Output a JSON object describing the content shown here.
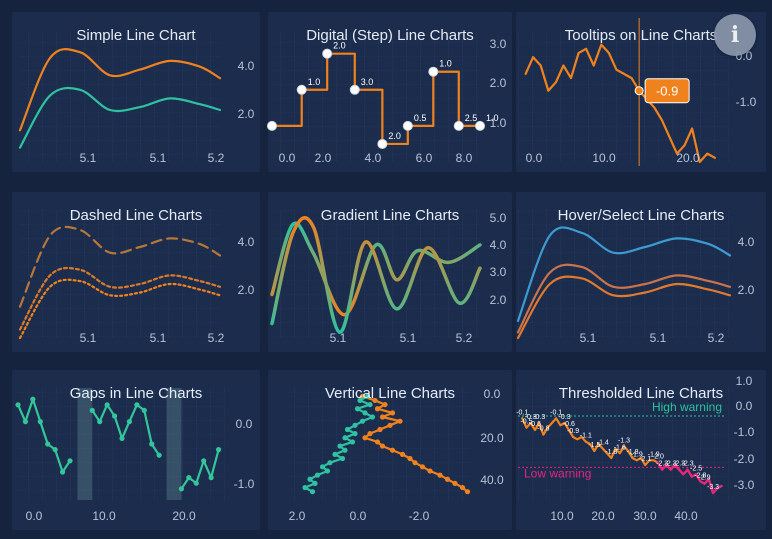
{
  "info_button": {
    "icon": "info-icon",
    "glyph": "i"
  },
  "colors": {
    "background": "#15233f",
    "panel": "#1b2c4d",
    "orange": "#f0821e",
    "teal": "#2fc2a0",
    "blue": "#3d9bd1",
    "green_line": "#33c69a",
    "warning_pink": "#e6237e",
    "high_warning": "#2bc29a"
  },
  "chart_data": [
    {
      "type": "line",
      "title": "Simple Line Chart",
      "x_ticks": [
        "5.1",
        "5.1",
        "5.2"
      ],
      "y_ticks": [
        "4.0",
        "2.0"
      ],
      "xlim": [
        5.0,
        5.2
      ],
      "ylim": [
        1.0,
        5.5
      ],
      "series": [
        {
          "color": "#f0821e",
          "x": [
            5.0,
            5.03,
            5.06,
            5.09,
            5.12,
            5.15,
            5.18,
            5.2
          ],
          "y": [
            2.1,
            4.6,
            4.8,
            4.0,
            4.2,
            4.5,
            4.3,
            3.9
          ]
        },
        {
          "color": "#2fc2a0",
          "x": [
            5.0,
            5.03,
            5.06,
            5.09,
            5.12,
            5.15,
            5.18,
            5.2
          ],
          "y": [
            1.5,
            3.3,
            3.5,
            2.8,
            2.9,
            3.2,
            3.0,
            2.8
          ]
        }
      ]
    },
    {
      "type": "line",
      "title": "Digital (Step) Line Charts",
      "x_ticks": [
        "0.0",
        "2.0",
        "4.0",
        "6.0",
        "8.0"
      ],
      "y_ticks": [
        "3.0",
        "2.0",
        "1.0"
      ],
      "xlim": [
        -0.8,
        9.0
      ],
      "ylim": [
        0.0,
        3.6
      ],
      "series": [
        {
          "color": "#f0821e",
          "step": true,
          "x": [
            -0.8,
            0.6,
            1.8,
            3.1,
            4.4,
            5.6,
            6.8,
            8.0,
            9.0
          ],
          "y": [
            1.0,
            2.0,
            3.0,
            2.0,
            0.5,
            1.0,
            2.5,
            1.0,
            1.0
          ],
          "labels": [
            "",
            "1.0",
            "2.0",
            "3.0",
            "2.0",
            "0.5",
            "1.0",
            "2.5",
            "1.0"
          ]
        }
      ]
    },
    {
      "type": "line",
      "title": "Tooltips on Line Charts",
      "x_ticks": [
        "0.0",
        "10.0",
        "20.0"
      ],
      "y_ticks": [
        "0.0",
        "-1.0"
      ],
      "xlim": [
        -1,
        27
      ],
      "ylim": [
        -2.6,
        0.5
      ],
      "tooltip": {
        "x": 15,
        "value": "-0.9"
      },
      "series": [
        {
          "color": "#f0821e",
          "x": [
            0,
            1,
            2,
            3,
            4,
            5,
            6,
            7,
            8,
            9,
            10,
            11,
            12,
            13,
            14,
            15,
            16,
            17,
            18,
            19,
            20,
            21,
            22,
            23,
            24,
            25
          ],
          "y": [
            -0.5,
            -0.1,
            -0.3,
            -0.9,
            -0.7,
            -0.3,
            -0.6,
            0.0,
            0.1,
            -0.3,
            0.2,
            0.0,
            -0.4,
            -0.5,
            -0.6,
            -0.9,
            -1.1,
            -1.3,
            -1.6,
            -2.0,
            -2.4,
            -2.2,
            -1.8,
            -2.6,
            -2.4,
            -2.5
          ]
        }
      ]
    },
    {
      "type": "line",
      "title": "Dashed Line Charts",
      "x_ticks": [
        "5.1",
        "5.1",
        "5.2"
      ],
      "y_ticks": [
        "4.0",
        "2.0"
      ],
      "xlim": [
        5.0,
        5.2
      ],
      "ylim": [
        1.0,
        5.5
      ],
      "series": [
        {
          "color": "#b8763a",
          "dash": "10,6",
          "x": [
            5.0,
            5.03,
            5.06,
            5.09,
            5.12,
            5.15,
            5.18,
            5.2
          ],
          "y": [
            2.1,
            4.6,
            4.8,
            4.0,
            4.2,
            4.5,
            4.3,
            3.9
          ]
        },
        {
          "color": "#d97a28",
          "dash": "3,3",
          "x": [
            5.0,
            5.03,
            5.06,
            5.09,
            5.12,
            5.15,
            5.18,
            5.2
          ],
          "y": [
            1.3,
            3.2,
            3.4,
            2.8,
            2.9,
            3.2,
            3.0,
            2.8
          ]
        },
        {
          "color": "#f0821e",
          "dash": "2,3",
          "x": [
            5.0,
            5.03,
            5.06,
            5.09,
            5.12,
            5.15,
            5.18,
            5.2
          ],
          "y": [
            1.0,
            2.8,
            3.0,
            2.5,
            2.6,
            2.9,
            2.7,
            2.5
          ]
        }
      ]
    },
    {
      "type": "line",
      "title": "Gradient Line Charts",
      "x_ticks": [
        "5.1",
        "5.1",
        "5.2"
      ],
      "y_ticks": [
        "5.0",
        "4.0",
        "3.0",
        "2.0"
      ],
      "xlim": [
        5.0,
        5.2
      ],
      "ylim": [
        1.0,
        5.4
      ],
      "series": [
        {
          "color": "#2fc2a0",
          "gradient": [
            "#f0821e",
            "#2fc2a0"
          ],
          "x": [
            5.0,
            5.02,
            5.04,
            5.07,
            5.1,
            5.12,
            5.14,
            5.17,
            5.2
          ],
          "y": [
            2.5,
            4.9,
            3.9,
            1.8,
            4.2,
            3.0,
            4.0,
            3.6,
            4.2
          ]
        },
        {
          "color": "#f0821e",
          "gradient": [
            "#2fc2a0",
            "#f0821e"
          ],
          "x": [
            5.0,
            5.02,
            5.04,
            5.065,
            5.09,
            5.12,
            5.15,
            5.18,
            5.2
          ],
          "y": [
            1.5,
            4.6,
            4.8,
            1.2,
            4.3,
            2.0,
            4.1,
            2.2,
            3.4
          ]
        }
      ]
    },
    {
      "type": "line",
      "title": "Hover/Select Line Charts",
      "x_ticks": [
        "5.1",
        "5.1",
        "5.2"
      ],
      "y_ticks": [
        "4.0",
        "2.0"
      ],
      "xlim": [
        5.0,
        5.2
      ],
      "ylim": [
        1.0,
        5.5
      ],
      "series": [
        {
          "color": "#3d9bd1",
          "x": [
            5.0,
            5.03,
            5.06,
            5.09,
            5.12,
            5.15,
            5.18,
            5.2
          ],
          "y": [
            1.6,
            4.6,
            4.7,
            4.0,
            4.2,
            4.5,
            4.3,
            3.9
          ]
        },
        {
          "color": "#c9744a",
          "x": [
            5.0,
            5.03,
            5.06,
            5.09,
            5.12,
            5.15,
            5.18,
            5.2
          ],
          "y": [
            1.2,
            3.3,
            3.5,
            2.8,
            2.9,
            3.2,
            3.0,
            2.8
          ]
        },
        {
          "color": "#e07a2e",
          "x": [
            5.0,
            5.03,
            5.06,
            5.09,
            5.12,
            5.15,
            5.18,
            5.2
          ],
          "y": [
            1.0,
            2.9,
            3.1,
            2.5,
            2.6,
            2.9,
            2.7,
            2.5
          ]
        }
      ]
    },
    {
      "type": "line",
      "title": "Gaps in Line Charts",
      "x_ticks": [
        "0.0",
        "10.0",
        "20.0"
      ],
      "y_ticks": [
        "0.0",
        "-1.0"
      ],
      "xlim": [
        -2,
        26
      ],
      "ylim": [
        -1.4,
        0.6
      ],
      "gap_ranges": [
        [
          6,
          8
        ],
        [
          18,
          20
        ]
      ],
      "series": [
        {
          "color": "#33c69a",
          "x": [
            -2,
            -1,
            0,
            1,
            2,
            3,
            4,
            5,
            null,
            8,
            9,
            10,
            11,
            12,
            13,
            14,
            15,
            16,
            17,
            null,
            20,
            21,
            22,
            23,
            24,
            25
          ],
          "y": [
            0.3,
            0.0,
            0.4,
            0.0,
            -0.4,
            -0.5,
            -0.9,
            -0.7,
            null,
            0.2,
            0.0,
            0.3,
            0.1,
            -0.3,
            0.0,
            0.3,
            0.2,
            -0.4,
            -0.6,
            null,
            -1.2,
            -1.0,
            -1.1,
            -0.7,
            -1.0,
            -0.5
          ]
        }
      ]
    },
    {
      "type": "line",
      "title": "Vertical Line Charts",
      "orientation": "vertical",
      "x_ticks": [
        "2.0",
        "0.0",
        "-2.0"
      ],
      "y_ticks": [
        "0.0",
        "20.0",
        "40.0"
      ],
      "xlim": [
        3.2,
        -4.0
      ],
      "ylim": [
        -4,
        50
      ],
      "series": [
        {
          "color": "#f0821e",
          "y": [
            0,
            2,
            4,
            6,
            8,
            10,
            12,
            14,
            16,
            18,
            20,
            22,
            24,
            26,
            28,
            30,
            32,
            34,
            36,
            38,
            40,
            42,
            44,
            46
          ],
          "x": [
            0.3,
            -0.2,
            -0.6,
            -0.3,
            -0.9,
            -0.5,
            -1.2,
            -0.8,
            -0.4,
            0.0,
            0.2,
            -0.3,
            -0.5,
            -0.9,
            -1.3,
            -1.6,
            -1.8,
            -2.1,
            -2.4,
            -2.8,
            -3.1,
            -3.4,
            -3.7,
            -3.9
          ]
        },
        {
          "color": "#2fc2a0",
          "y": [
            0,
            2,
            4,
            6,
            8,
            10,
            12,
            14,
            16,
            18,
            20,
            22,
            24,
            26,
            28,
            30,
            32,
            34,
            36,
            38,
            40,
            42,
            44,
            46
          ],
          "x": [
            0.1,
            0.4,
            0.0,
            0.5,
            0.2,
            -0.1,
            0.3,
            0.6,
            0.9,
            0.6,
            1.0,
            0.7,
            1.2,
            1.0,
            1.4,
            1.1,
            1.6,
            1.9,
            1.7,
            2.1,
            2.4,
            2.2,
            2.6,
            2.3
          ]
        }
      ]
    },
    {
      "type": "line",
      "title": "Thresholded Line Charts",
      "x_ticks": [
        "10.0",
        "20.0",
        "30.0",
        "40.0"
      ],
      "y_ticks": [
        "1.0",
        "0.0",
        "-1.0",
        "-2.0",
        "-3.0"
      ],
      "xlim": [
        0,
        50
      ],
      "ylim": [
        -3.6,
        1.2
      ],
      "thresholds": [
        {
          "label": "High warning",
          "value": 0.0,
          "color": "#2bc29a"
        },
        {
          "label": "Low warning",
          "value": -2.2,
          "color": "#e6237e"
        }
      ],
      "series": [
        {
          "color": "#f0821e",
          "x": [
            1,
            2,
            3,
            4,
            5,
            6,
            7,
            8,
            9,
            10,
            11,
            12,
            13,
            14,
            15,
            16,
            17,
            18,
            19,
            20,
            21,
            22,
            23,
            24,
            25,
            26,
            27,
            28,
            29,
            30,
            31,
            32,
            33,
            34,
            35,
            36,
            37,
            38,
            39,
            40,
            41,
            42,
            43,
            44,
            45,
            46,
            47,
            48
          ],
          "y": [
            -0.1,
            -0.5,
            -0.3,
            -0.6,
            -0.3,
            -0.8,
            -0.5,
            -0.3,
            -0.1,
            -0.4,
            -0.3,
            -0.6,
            -0.9,
            -1.0,
            -0.9,
            -1.1,
            -1.2,
            -1.5,
            -1.2,
            -1.4,
            -1.6,
            -1.8,
            -1.4,
            -1.6,
            -1.3,
            -1.5,
            -1.8,
            -1.9,
            -1.8,
            -2.1,
            -1.9,
            -1.9,
            -2.0,
            -2.3,
            -2.1,
            -2.3,
            -2.1,
            -2.3,
            -2.5,
            -2.3,
            -2.6,
            -2.5,
            -2.8,
            -2.9,
            -2.7,
            -3.3,
            -3.1,
            -3.0
          ]
        }
      ],
      "point_labels": [
        {
          "x": 1,
          "y": -0.1,
          "label": "-0.1"
        },
        {
          "x": 2,
          "y": -0.5,
          "label": "-0.5"
        },
        {
          "x": 3,
          "y": -0.3,
          "label": "-0.3"
        },
        {
          "x": 4,
          "y": -0.6,
          "label": "-0.6"
        },
        {
          "x": 5,
          "y": -0.3,
          "label": "-0.3"
        },
        {
          "x": 6,
          "y": -0.8,
          "label": "-0.8"
        },
        {
          "x": 9,
          "y": -0.1,
          "label": "-0.1"
        },
        {
          "x": 11,
          "y": -0.3,
          "label": "-0.3"
        },
        {
          "x": 12,
          "y": -0.6,
          "label": "-0.6"
        },
        {
          "x": 13,
          "y": -0.9,
          "label": "-0.9"
        },
        {
          "x": 16,
          "y": -1.1,
          "label": "-1.1"
        },
        {
          "x": 18,
          "y": -1.5,
          "label": "-1.5"
        },
        {
          "x": 20,
          "y": -1.4,
          "label": "-1.4"
        },
        {
          "x": 22,
          "y": -1.8,
          "label": "-1.8"
        },
        {
          "x": 24,
          "y": -1.6,
          "label": "-1.6"
        },
        {
          "x": 25,
          "y": -1.3,
          "label": "-1.3"
        },
        {
          "x": 27,
          "y": -1.8,
          "label": "-1.8"
        },
        {
          "x": 28,
          "y": -1.9,
          "label": "-1.9"
        },
        {
          "x": 30,
          "y": -2.1,
          "label": "-2.1"
        },
        {
          "x": 32,
          "y": -1.9,
          "label": "-1.9"
        },
        {
          "x": 33,
          "y": -2.0,
          "label": "-2.0"
        },
        {
          "x": 34,
          "y": -2.3,
          "label": "-2.3"
        },
        {
          "x": 36,
          "y": -2.3,
          "label": "-2.3"
        },
        {
          "x": 38,
          "y": -2.3,
          "label": "-2.3"
        },
        {
          "x": 40,
          "y": -2.3,
          "label": "-2.3"
        },
        {
          "x": 42,
          "y": -2.5,
          "label": "-2.5"
        },
        {
          "x": 43,
          "y": -2.8,
          "label": "-2.8"
        },
        {
          "x": 44,
          "y": -2.9,
          "label": "-2.9"
        },
        {
          "x": 46,
          "y": -3.3,
          "label": "-3.3"
        }
      ]
    }
  ]
}
